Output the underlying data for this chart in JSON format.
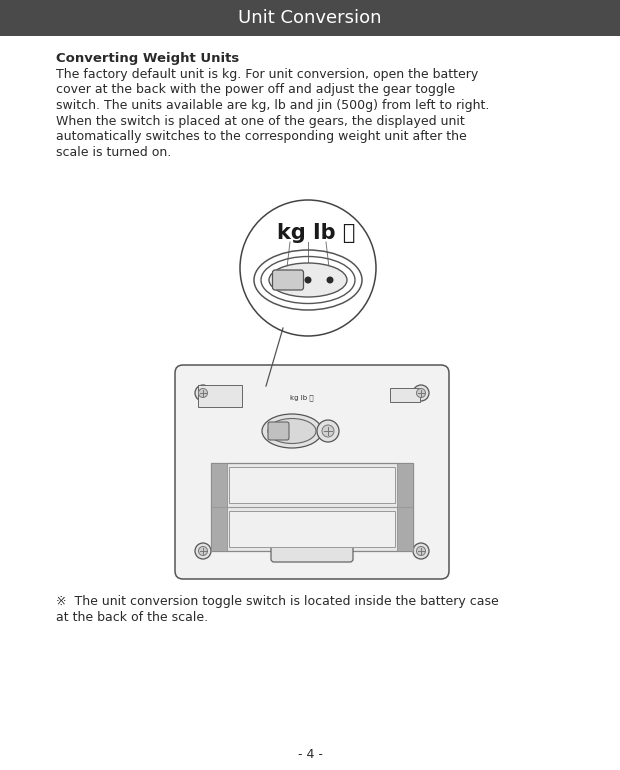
{
  "title": "Unit Conversion",
  "title_bg_color": "#4a4a4a",
  "title_text_color": "#ffffff",
  "title_fontsize": 13,
  "page_bg_color": "#ffffff",
  "section_title": "Converting Weight Units",
  "section_title_fontsize": 9.5,
  "body_lines": [
    "The factory default unit is kg. For unit conversion, open the battery",
    "cover at the back with the power off and adjust the gear toggle",
    "switch. The units available are kg, lb and jin (500g) from left to right.",
    "When the switch is placed at one of the gears, the displayed unit",
    "automatically switches to the corresponding weight unit after the",
    "scale is turned on."
  ],
  "body_fontsize": 9.0,
  "note_text_line1": "※  The unit conversion toggle switch is located inside the battery case",
  "note_text_line2": "at the back of the scale.",
  "note_fontsize": 9.0,
  "page_number": "- 4 -",
  "page_number_fontsize": 9,
  "text_color": "#2a2a2a",
  "line_color": "#555555",
  "img_label": "kg Ib 斤",
  "img_label_fontsize": 15,
  "small_label": "kg lb 斤",
  "small_label_fontsize": 5
}
